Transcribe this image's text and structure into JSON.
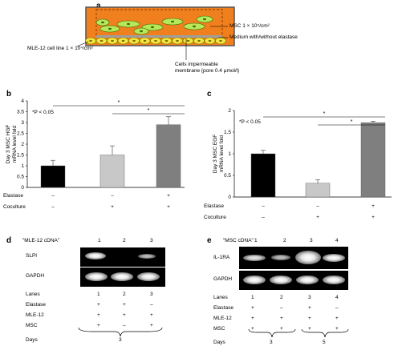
{
  "panels": {
    "a": "a",
    "b": "b",
    "c": "c",
    "d": "d",
    "e": "e"
  },
  "panel_a": {
    "msc_label": "MSC 1 × 10⁵/cm²",
    "medium_label": "Medium with/without elastase",
    "mle_label": "MLE-12 cell line 1 × 10⁴/cm²",
    "membrane_label_1": "Cells impermeable",
    "membrane_label_2": "membrane (pore 0.4 μmol/l)",
    "colors": {
      "medium": "#f07f1e",
      "msc": "#b7e85a",
      "mle": "#f2e640",
      "dish": "#555555"
    }
  },
  "chart_data": [
    {
      "type": "bar",
      "panel": "b",
      "ylabel": "Day 3 MSC HGF mRNA level fold",
      "ylim": [
        0,
        4
      ],
      "yticks": [
        "0",
        "0.5",
        "1",
        "1.5",
        "2",
        "2.5",
        "3",
        "3.5",
        "4"
      ],
      "values": [
        1.0,
        1.5,
        2.9
      ],
      "errors": [
        0.25,
        0.42,
        0.37
      ],
      "colors": [
        "#000000",
        "#c8c8c8",
        "#7f7f7f"
      ],
      "annotation": "*P < 0.05",
      "sig": [
        "*",
        "*"
      ],
      "rows": [
        {
          "label": "Elastase",
          "cells": [
            "–",
            "–",
            "+"
          ]
        },
        {
          "label": "Coculture",
          "cells": [
            "–",
            "+",
            "+"
          ]
        }
      ]
    },
    {
      "type": "bar",
      "panel": "c",
      "ylabel": "Day 3 MSC EGF mRNA level fold",
      "ylim": [
        0,
        2
      ],
      "yticks": [
        "0",
        "0.5",
        "1",
        "1.5",
        "2"
      ],
      "values": [
        1.0,
        0.32,
        1.72
      ],
      "errors": [
        0.08,
        0.08,
        0.03
      ],
      "colors": [
        "#000000",
        "#c8c8c8",
        "#7f7f7f"
      ],
      "annotation": "*P < 0.05",
      "sig": [
        "*",
        "*"
      ],
      "rows": [
        {
          "label": "Elastase",
          "cells": [
            "–",
            "–",
            "+"
          ]
        },
        {
          "label": "Coculture",
          "cells": [
            "–",
            "+",
            "+"
          ]
        }
      ]
    }
  ],
  "panel_d": {
    "header": "\"MLE-12 cDNA\"",
    "lane_nums": [
      "1",
      "2",
      "3"
    ],
    "gene1": "SLPI",
    "gene2": "GAPDH",
    "rows": [
      {
        "label": "Lanes",
        "cells": [
          "1",
          "2",
          "3"
        ]
      },
      {
        "label": "Elastase",
        "cells": [
          "+",
          "+",
          "–"
        ]
      },
      {
        "label": "MLE-12",
        "cells": [
          "+",
          "+",
          "+"
        ]
      },
      {
        "label": "MSC",
        "cells": [
          "+",
          "–",
          "+"
        ]
      }
    ],
    "days_label": "Days",
    "days_value": "3"
  },
  "panel_e": {
    "header": "\"MSC cDNA\"",
    "lane_nums": [
      "1",
      "2",
      "3",
      "4"
    ],
    "gene1": "IL-1RA",
    "gene2": "GAPDH",
    "rows": [
      {
        "label": "Lanes",
        "cells": [
          "1",
          "2",
          "3",
          "4"
        ]
      },
      {
        "label": "Elastase",
        "cells": [
          "+",
          "–",
          "+",
          "–"
        ]
      },
      {
        "label": "MLE-12",
        "cells": [
          "+",
          "+",
          "+",
          "+"
        ]
      },
      {
        "label": "MSC",
        "cells": [
          "+",
          "+",
          "+",
          "+"
        ]
      }
    ],
    "days_label": "Days",
    "days_values": [
      "3",
      "5"
    ]
  }
}
